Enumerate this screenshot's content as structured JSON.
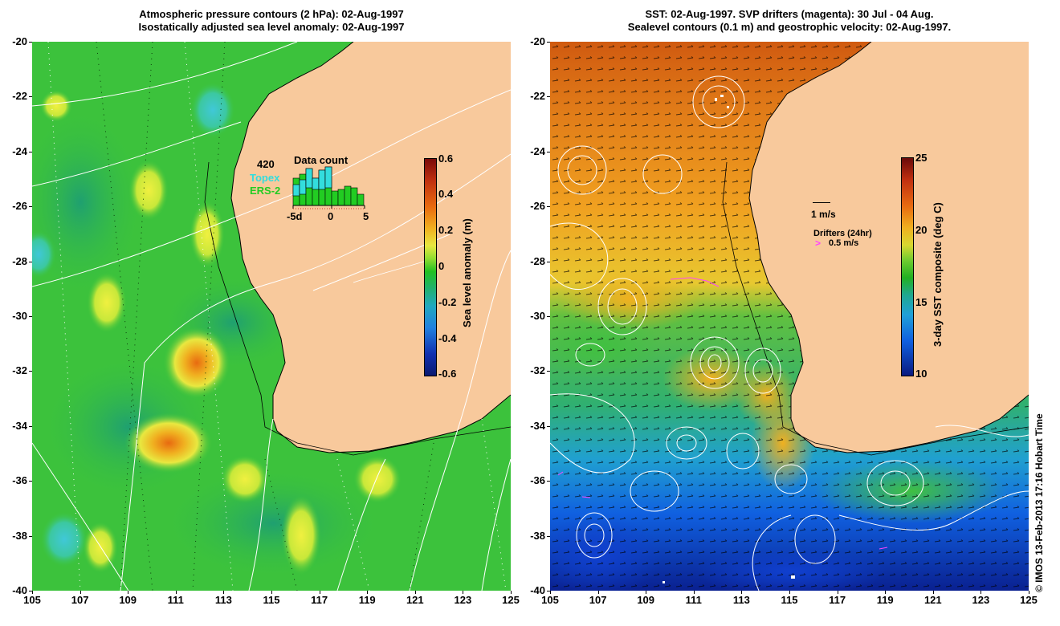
{
  "left_panel": {
    "title_line1": "Atmospheric pressure contours (2 hPa): 02-Aug-1997",
    "title_line2": "Isostatically adjusted sea level anomaly: 02-Aug-1997",
    "colorbar": {
      "label": "Sea level anomaly (m)",
      "ticks": [
        "0.6",
        "0.4",
        "0.2",
        "0",
        "-0.2",
        "-0.4",
        "-0.6"
      ]
    },
    "inset": {
      "count": "420",
      "title": "Data count",
      "series": [
        {
          "name": "Topex",
          "color": "#33dddd"
        },
        {
          "name": "ERS-2",
          "color": "#22cc22"
        }
      ],
      "x_ticks": [
        "-5d",
        "0",
        "5"
      ]
    }
  },
  "right_panel": {
    "title_line1": "SST: 02-Aug-1997. SVP drifters (magenta): 30 Jul - 04 Aug.",
    "title_line2": "Sealevel contours (0.1 m) and geostrophic velocity: 02-Aug-1997.",
    "colorbar": {
      "label": "3-day SST composite (deg C)",
      "ticks": [
        "25",
        "20",
        "15",
        "10"
      ]
    },
    "legend": {
      "velocity_scale": "1 m/s",
      "drifters_title": "Drifters (24hr)",
      "drifters_scale": "0.5 m/s"
    }
  },
  "axes": {
    "y_ticks": [
      "-20",
      "-22",
      "-24",
      "-26",
      "-28",
      "-30",
      "-32",
      "-34",
      "-36",
      "-38",
      "-40"
    ],
    "x_ticks": [
      "105",
      "107",
      "109",
      "111",
      "113",
      "115",
      "117",
      "119",
      "121",
      "123",
      "125"
    ]
  },
  "colors": {
    "land": "#f8c99c",
    "ocean_base": "#33c233",
    "sst_warm": "#e88a10",
    "sst_cool": "#1060e8",
    "drifter": "#ff44ff"
  },
  "credit": "© IMOS 13-Feb-2013 17:16 Hobart Time"
}
